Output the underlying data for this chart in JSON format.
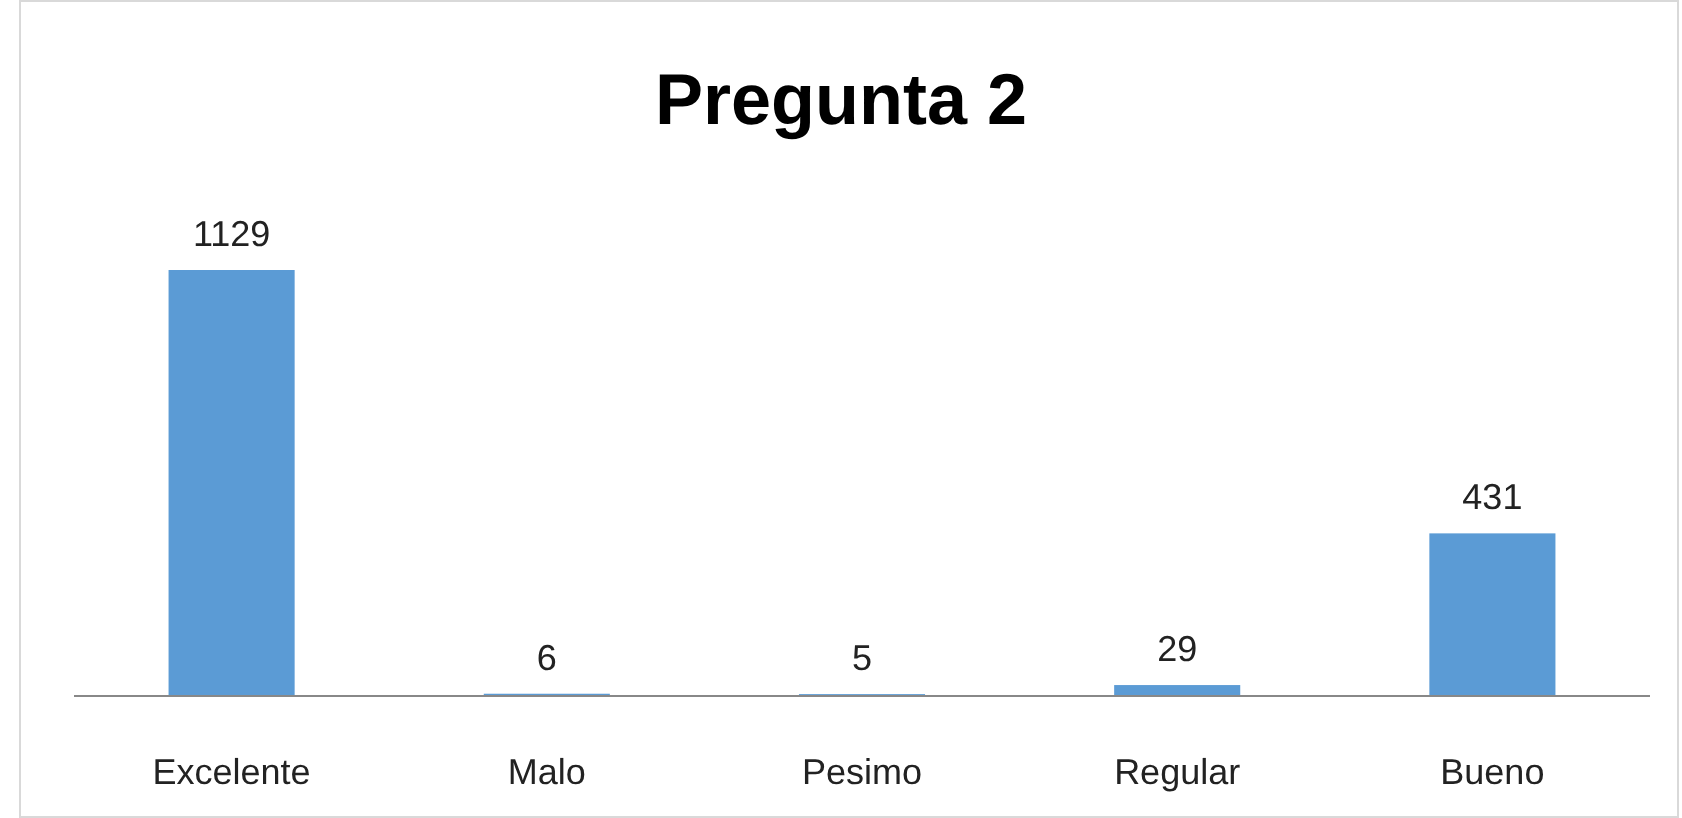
{
  "chart_data": {
    "type": "bar",
    "title": "Pregunta 2",
    "categories": [
      "Excelente",
      "Malo",
      "Pesimo",
      "Regular",
      "Bueno"
    ],
    "values": [
      1129,
      6,
      5,
      29,
      431
    ],
    "color": "#5b9bd5",
    "data_labels": true
  }
}
